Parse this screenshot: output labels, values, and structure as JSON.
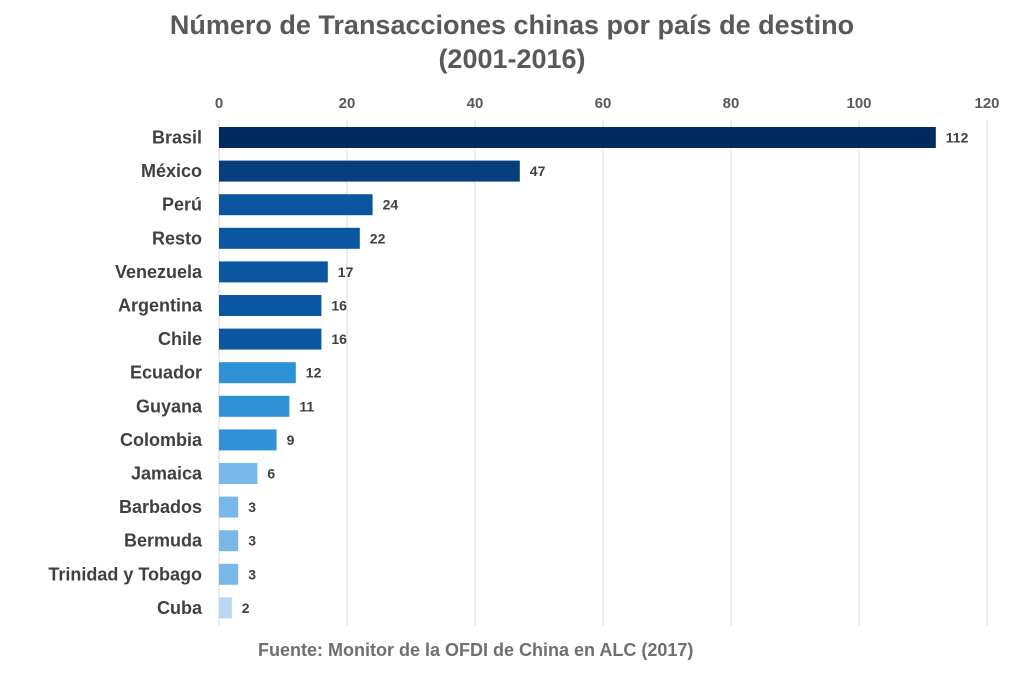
{
  "chart_data": {
    "type": "bar",
    "orientation": "horizontal",
    "title": "Número de Transacciones chinas por país de destino",
    "subtitle": "(2001-2016)",
    "categories": [
      "Brasil",
      "México",
      "Perú",
      "Resto",
      "Venezuela",
      "Argentina",
      "Chile",
      "Ecuador",
      "Guyana",
      "Colombia",
      "Jamaica",
      "Barbados",
      "Bermuda",
      "Trinidad y Tobago",
      "Cuba"
    ],
    "values": [
      112,
      47,
      24,
      22,
      17,
      16,
      16,
      12,
      11,
      9,
      6,
      3,
      3,
      3,
      2
    ],
    "bar_colors": [
      "#002b5e",
      "#073e7e",
      "#0b56a0",
      "#0b56a0",
      "#0b56a0",
      "#0b56a0",
      "#0b56a0",
      "#2f91d6",
      "#2f91d6",
      "#2f91d6",
      "#7bb8ea",
      "#7bb8ea",
      "#7bb8ea",
      "#7bb8ea",
      "#b7d7f3"
    ],
    "xlim": [
      0,
      120
    ],
    "x_ticks": [
      0,
      20,
      40,
      60,
      80,
      100,
      120
    ],
    "x_axis_position": "top",
    "grid": true,
    "data_labels": true,
    "legend": "none"
  },
  "source": "Fuente: Monitor de la OFDI de China en ALC (2017)"
}
